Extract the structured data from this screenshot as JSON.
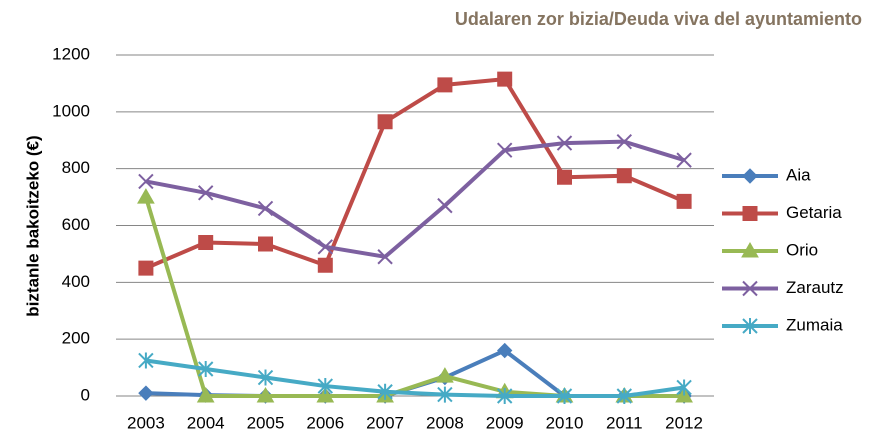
{
  "chart_data": {
    "type": "line",
    "title": "Udalaren zor bizia/Deuda viva del ayuntamiento",
    "y_label": "biztanle bakoitzeko (€)",
    "categories": [
      "2003",
      "2004",
      "2005",
      "2006",
      "2007",
      "2008",
      "2009",
      "2010",
      "2011",
      "2012"
    ],
    "series": [
      {
        "name": "Aia",
        "color": "#4a7ebb",
        "marker": "diamond",
        "values": [
          10,
          3,
          0,
          0,
          0,
          65,
          160,
          0,
          0,
          0
        ]
      },
      {
        "name": "Getaria",
        "color": "#be4b48",
        "marker": "square",
        "values": [
          450,
          540,
          535,
          460,
          965,
          1095,
          1115,
          770,
          775,
          685
        ]
      },
      {
        "name": "Orio",
        "color": "#98b954",
        "marker": "triangle",
        "values": [
          700,
          0,
          0,
          0,
          0,
          70,
          15,
          0,
          0,
          0
        ]
      },
      {
        "name": "Zarautz",
        "color": "#7d60a0",
        "marker": "x",
        "values": [
          755,
          715,
          660,
          525,
          490,
          670,
          865,
          890,
          895,
          830
        ]
      },
      {
        "name": "Zumaia",
        "color": "#46aac5",
        "marker": "asterisk",
        "values": [
          125,
          95,
          65,
          35,
          15,
          5,
          0,
          0,
          0,
          30
        ]
      }
    ],
    "ylim": [
      0,
      1200
    ],
    "yticks": [
      0,
      200,
      400,
      600,
      800,
      1000,
      1200
    ],
    "grid": true,
    "legend": "right"
  }
}
